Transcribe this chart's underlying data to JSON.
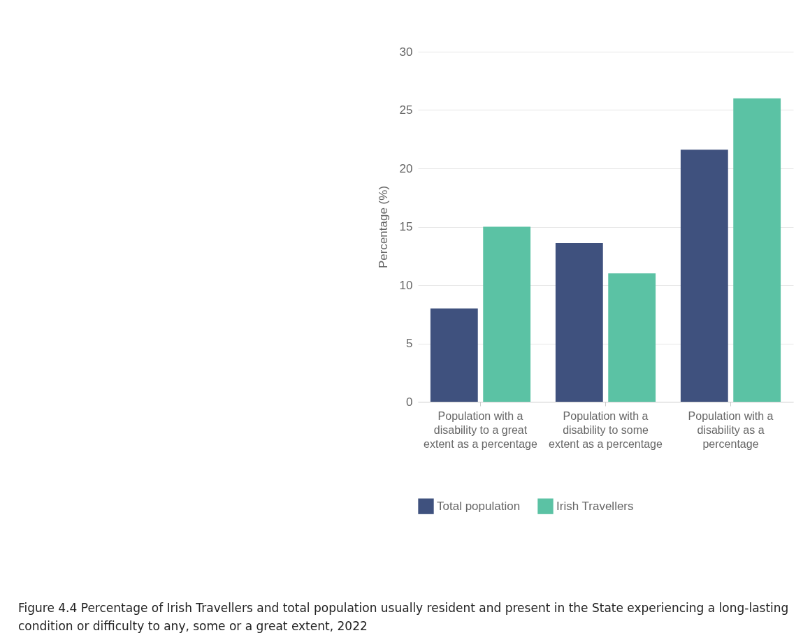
{
  "chart_data": {
    "type": "bar",
    "ylabel": "Percentage (%)",
    "categories": [
      "Population with a disability to a great extent as a percentage",
      "Population with a disability to some extent as a percentage",
      "Population with a disability as a percentage"
    ],
    "series": [
      {
        "name": "Total population",
        "color": "#3f517e",
        "values": [
          8.0,
          13.6,
          21.6
        ]
      },
      {
        "name": "Irish Travellers",
        "color": "#5bc2a4",
        "values": [
          15.0,
          11.0,
          26.0
        ]
      }
    ],
    "ylim": [
      0,
      30
    ],
    "yticks": [
      0,
      5,
      10,
      15,
      20,
      25,
      30
    ],
    "grid": "y",
    "legend": "bottom",
    "annotations": [
      "Figure 4.4 Percentage of Irish Travellers and total population usually resident and present in the State experiencing a long-lasting condition or difficulty to any, some or a great extent, 2022"
    ]
  }
}
